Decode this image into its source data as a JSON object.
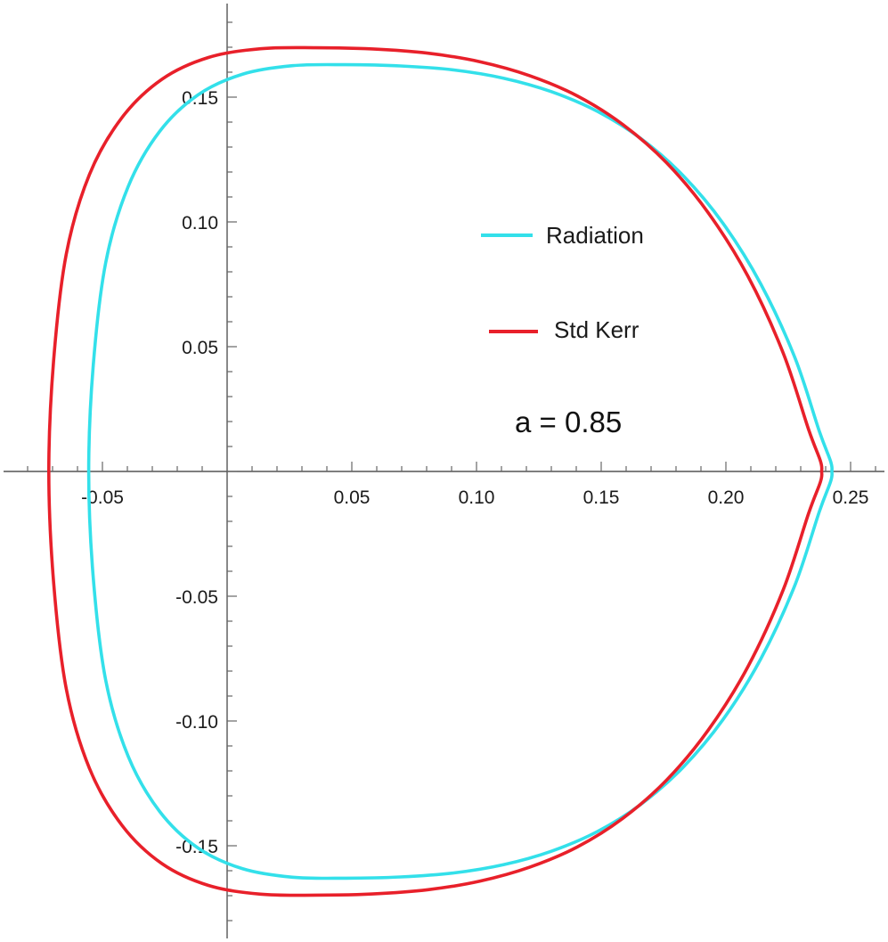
{
  "chart_data": {
    "type": "line",
    "title": "",
    "xlabel": "",
    "ylabel": "",
    "xlim": [
      -0.09,
      0.26
    ],
    "ylim": [
      -0.19,
      0.185
    ],
    "grid": false,
    "legend_position": "right",
    "annotation": "a = 0.85",
    "x_ticks": [
      {
        "value": -0.05,
        "label": "-0.05"
      },
      {
        "value": 0.05,
        "label": "0.05"
      },
      {
        "value": 0.1,
        "label": "0.10"
      },
      {
        "value": 0.15,
        "label": "0.15"
      },
      {
        "value": 0.2,
        "label": "0.20"
      },
      {
        "value": 0.25,
        "label": "0.25"
      }
    ],
    "y_ticks": [
      {
        "value": 0.15,
        "label": "0.15"
      },
      {
        "value": 0.1,
        "label": "0.10"
      },
      {
        "value": 0.05,
        "label": "0.05"
      },
      {
        "value": -0.05,
        "label": "-0.05"
      },
      {
        "value": -0.1,
        "label": "-0.10"
      },
      {
        "value": -0.15,
        "label": "-0.15"
      }
    ],
    "series": [
      {
        "name": "Radiation",
        "color": "#33e0ea",
        "x": [
          -0.0555,
          -0.0537,
          -0.0487,
          -0.0397,
          -0.0271,
          -0.0117,
          0.0062,
          0.0262,
          0.0475,
          0.0695,
          0.0909,
          0.1108,
          0.13,
          0.1483,
          0.1659,
          0.1827,
          0.1988,
          0.214,
          0.2277,
          0.2375,
          0.242,
          0.2425,
          0.242,
          0.2375,
          0.2277,
          0.214,
          0.1988,
          0.1827,
          0.1659,
          0.1483,
          0.13,
          0.1108,
          0.0909,
          0.0695,
          0.0475,
          0.0262,
          0.0062,
          -0.0117,
          -0.0271,
          -0.0397,
          -0.0487,
          -0.0537,
          -0.0555
        ],
        "y": [
          0.0,
          0.0423,
          0.0836,
          0.1141,
          0.1362,
          0.1509,
          0.1592,
          0.1626,
          0.163,
          0.1625,
          0.1609,
          0.1576,
          0.1522,
          0.1444,
          0.1334,
          0.1187,
          0.0995,
          0.0751,
          0.0455,
          0.016,
          0.004,
          0.0,
          -0.004,
          -0.016,
          -0.0455,
          -0.0751,
          -0.0995,
          -0.1187,
          -0.1334,
          -0.1444,
          -0.1522,
          -0.1576,
          -0.1609,
          -0.1625,
          -0.163,
          -0.1626,
          -0.1592,
          -0.1509,
          -0.1362,
          -0.1141,
          -0.0836,
          -0.0423,
          0.0
        ]
      },
      {
        "name": "Std Kerr",
        "color": "#e8202a",
        "x": [
          -0.0715,
          -0.0696,
          -0.0645,
          -0.0552,
          -0.0421,
          -0.0261,
          -0.0075,
          0.0134,
          0.0355,
          0.0584,
          0.0806,
          0.1013,
          0.1213,
          0.1404,
          0.1587,
          0.1762,
          0.1929,
          0.2088,
          0.223,
          0.2332,
          0.2379,
          0.2384,
          0.2379,
          0.2332,
          0.223,
          0.2088,
          0.1929,
          0.1762,
          0.1587,
          0.1404,
          0.1213,
          0.1013,
          0.0806,
          0.0584,
          0.0355,
          0.0134,
          -0.0075,
          -0.0261,
          -0.0421,
          -0.0552,
          -0.0645,
          -0.0696,
          -0.0715
        ],
        "y": [
          0.0,
          0.0441,
          0.0871,
          0.119,
          0.1419,
          0.1572,
          0.1659,
          0.1694,
          0.1698,
          0.1693,
          0.1676,
          0.1642,
          0.1586,
          0.1505,
          0.139,
          0.1237,
          0.1037,
          0.0783,
          0.0474,
          0.0167,
          0.0042,
          0.0,
          -0.0042,
          -0.0167,
          -0.0474,
          -0.0783,
          -0.1037,
          -0.1237,
          -0.139,
          -0.1505,
          -0.1586,
          -0.1642,
          -0.1676,
          -0.1693,
          -0.1698,
          -0.1694,
          -0.1659,
          -0.1572,
          -0.1419,
          -0.119,
          -0.0871,
          -0.0441,
          0.0
        ]
      }
    ]
  }
}
